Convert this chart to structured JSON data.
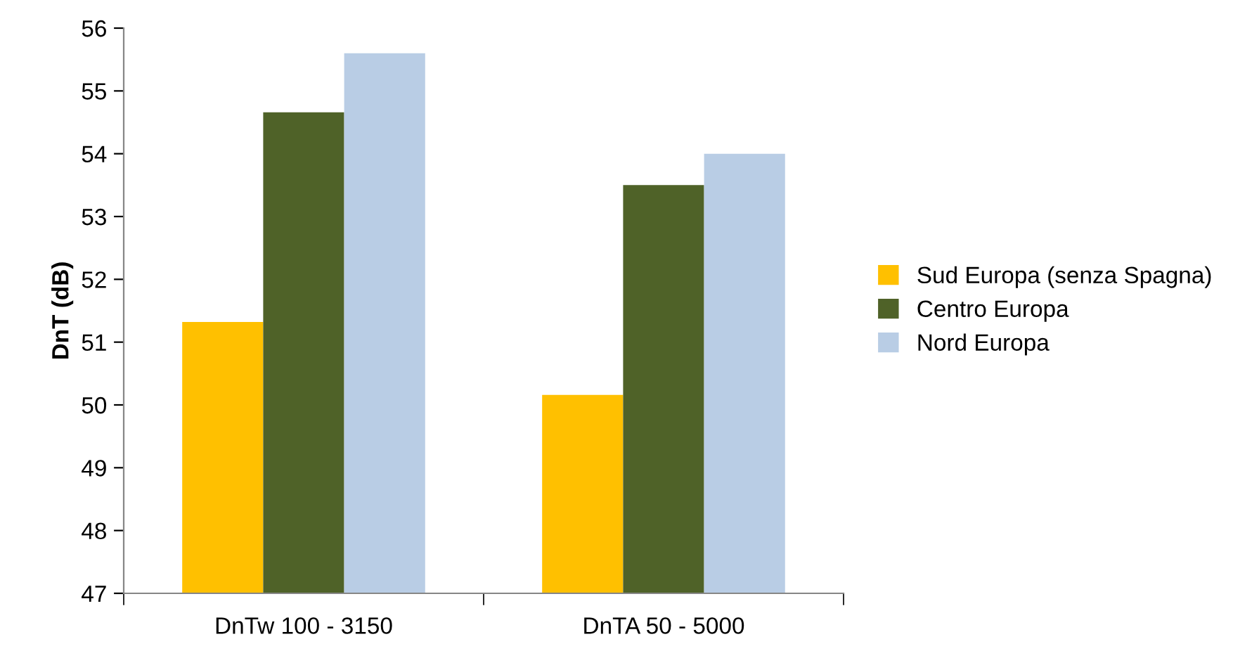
{
  "chart_data": {
    "type": "bar",
    "ylabel": "DnT (dB)",
    "categories": [
      "DnTw 100 - 3150",
      "DnTA 50 - 5000"
    ],
    "series": [
      {
        "name": "Sud Europa (senza Spagna)",
        "color": "#ffc000",
        "values": [
          51.32,
          50.16
        ]
      },
      {
        "name": "Centro Europa",
        "color": "#4f6228",
        "values": [
          54.66,
          53.5
        ]
      },
      {
        "name": "Nord Europa",
        "color": "#b9cde5",
        "values": [
          55.6,
          54.0
        ]
      }
    ],
    "ylim": [
      47,
      56
    ],
    "yticks": [
      47,
      48,
      49,
      50,
      51,
      52,
      53,
      54,
      55,
      56
    ],
    "grid": false,
    "legend": "right"
  }
}
